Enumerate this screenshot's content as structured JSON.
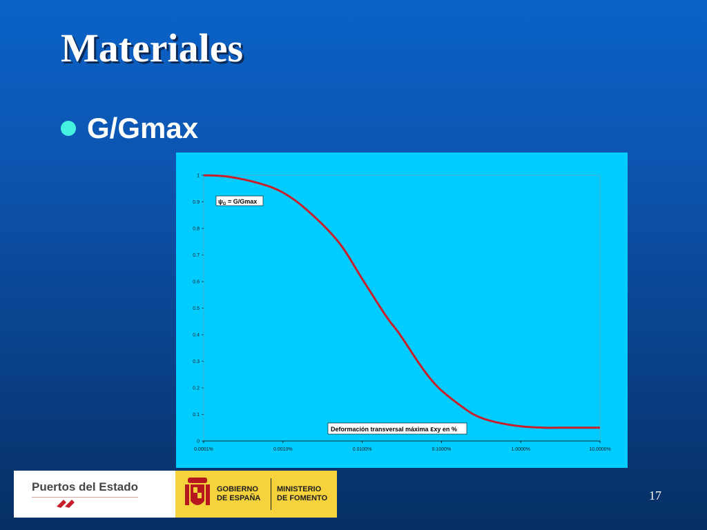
{
  "slide": {
    "title": "Materiales",
    "bullet": "G/Gmax",
    "page_number": "17"
  },
  "footer": {
    "org1": "Puertos del Estado",
    "gov_line1": "GOBIERNO",
    "gov_line2": "DE ESPAÑA",
    "min_line1": "MINISTERIO",
    "min_line2": "DE FOMENTO"
  },
  "colors": {
    "panel_bg": "#00ccff",
    "curve": "#c8202a",
    "footer_yellow": "#f6d33c"
  },
  "chart_data": {
    "type": "line",
    "x_scale": "log",
    "xlim": [
      0.0001,
      10
    ],
    "ylim": [
      0,
      1
    ],
    "x_ticks": [
      0.0001,
      0.001,
      0.01,
      0.1,
      1,
      10
    ],
    "x_tick_labels": [
      "0.0001%",
      "0.0010%",
      "0.0100%",
      "0.1000%",
      "1.0000%",
      "10.0000%"
    ],
    "y_ticks": [
      0,
      0.1,
      0.2,
      0.3,
      0.4,
      0.5,
      0.6,
      0.7,
      0.8,
      0.9,
      1
    ],
    "y_tick_labels": [
      "0",
      "0.1",
      "0.2",
      "0.3",
      "0.4",
      "0.5",
      "0.6",
      "0.7",
      "0.8",
      "0.9",
      "1"
    ],
    "series_label_prefix": "ψ",
    "series_label_sub": "G",
    "series_label_rest": " = G/Gmax",
    "xlabel_prefix": "Deformación transversal máxima ",
    "xlabel_symbol": "ε",
    "xlabel_rest": "xy en %",
    "series": [
      {
        "x": [
          0.0001,
          0.0002,
          0.0005,
          0.001,
          0.002,
          0.005,
          0.01,
          0.02,
          0.03,
          0.05,
          0.07,
          0.1,
          0.2,
          0.3,
          0.5,
          1,
          2,
          3,
          5,
          10
        ],
        "y": [
          1.0,
          0.995,
          0.97,
          0.935,
          0.87,
          0.75,
          0.61,
          0.47,
          0.4,
          0.3,
          0.24,
          0.19,
          0.12,
          0.09,
          0.07,
          0.055,
          0.05,
          0.05,
          0.05,
          0.05
        ]
      }
    ]
  }
}
